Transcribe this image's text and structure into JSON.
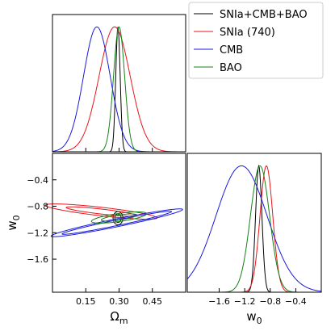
{
  "chart_data": {
    "type": "corner",
    "parameters": [
      {
        "symbol": "Ω",
        "subscript": "m",
        "range": [
          0.0,
          0.6
        ],
        "ticks": [
          "0.15",
          "0.30",
          "0.45"
        ]
      },
      {
        "symbol": "w",
        "subscript": "0",
        "range": [
          -2.1,
          0.0
        ],
        "ticks": [
          "−1.6",
          "−1.2",
          "−0.8",
          "−0.4"
        ]
      }
    ],
    "legend": {
      "placement": "top-right",
      "entries": [
        {
          "label": "SNIa+CMB+BAO",
          "color": "#000000"
        },
        {
          "label": "SNIa (740)",
          "color": "#e8161b"
        },
        {
          "label": "CMB",
          "color": "#1a1adb"
        },
        {
          "label": "BAO",
          "color": "#178017"
        }
      ]
    },
    "series": [
      {
        "id": "snia_cmb_bao",
        "color": "#000000",
        "omega_m": {
          "mean": 0.295,
          "sigma": 0.01
        },
        "w0": {
          "mean": -0.98,
          "sigma": 0.05
        },
        "ellipses": [
          {
            "center": [
              0.295,
              -0.98
            ],
            "semi_axes": [
              0.014,
              0.065
            ],
            "angle_deg": 0
          },
          {
            "center": [
              0.295,
              -0.98
            ],
            "semi_axes": [
              0.022,
              0.1
            ],
            "angle_deg": 0
          }
        ]
      },
      {
        "id": "snia_740",
        "color": "#e8161b",
        "omega_m": {
          "mean": 0.28,
          "sigma": 0.07
        },
        "w0": {
          "mean": -0.86,
          "sigma": 0.1
        },
        "ellipses": [
          {
            "center": [
              0.22,
              -0.88
            ],
            "semi_axes": [
              0.17,
              0.035
            ],
            "angle_deg": -22
          },
          {
            "center": [
              0.22,
              -0.88
            ],
            "semi_axes": [
              0.27,
              0.06
            ],
            "angle_deg": -22
          }
        ]
      },
      {
        "id": "cmb",
        "color": "#1a1adb",
        "omega_m": {
          "mean": 0.2,
          "sigma": 0.06
        },
        "w0": {
          "mean": -1.25,
          "sigma": 0.4
        },
        "ellipses": [
          {
            "center": [
              0.29,
              -1.05
            ],
            "semi_axes": [
              0.3,
              0.035
            ],
            "angle_deg": 35
          },
          {
            "center": [
              0.29,
              -1.05
            ],
            "semi_axes": [
              0.36,
              0.05
            ],
            "angle_deg": 35
          }
        ]
      },
      {
        "id": "bao",
        "color": "#178017",
        "omega_m": {
          "mean": 0.3,
          "sigma": 0.025
        },
        "w0": {
          "mean": -0.96,
          "sigma": 0.15
        },
        "ellipses": [
          {
            "center": [
              0.3,
              -0.97
            ],
            "semi_axes": [
              0.09,
              0.035
            ],
            "angle_deg": 30
          },
          {
            "center": [
              0.3,
              -0.97
            ],
            "semi_axes": [
              0.14,
              0.055
            ],
            "angle_deg": 30
          }
        ]
      }
    ]
  }
}
